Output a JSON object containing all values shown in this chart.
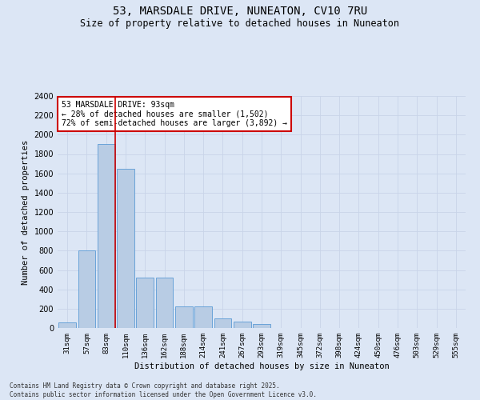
{
  "title_line1": "53, MARSDALE DRIVE, NUNEATON, CV10 7RU",
  "title_line2": "Size of property relative to detached houses in Nuneaton",
  "xlabel": "Distribution of detached houses by size in Nuneaton",
  "ylabel": "Number of detached properties",
  "categories": [
    "31sqm",
    "57sqm",
    "83sqm",
    "110sqm",
    "136sqm",
    "162sqm",
    "188sqm",
    "214sqm",
    "241sqm",
    "267sqm",
    "293sqm",
    "319sqm",
    "345sqm",
    "372sqm",
    "398sqm",
    "424sqm",
    "450sqm",
    "476sqm",
    "503sqm",
    "529sqm",
    "555sqm"
  ],
  "values": [
    60,
    800,
    1900,
    1650,
    520,
    520,
    225,
    225,
    100,
    70,
    40,
    0,
    0,
    0,
    0,
    0,
    0,
    0,
    0,
    0,
    0
  ],
  "bar_color": "#b8cce4",
  "bar_edge_color": "#5b9bd5",
  "grid_color": "#c8d4e8",
  "background_color": "#dce6f5",
  "vline_color": "#cc0000",
  "vline_x_index": 2,
  "annotation_text": "53 MARSDALE DRIVE: 93sqm\n← 28% of detached houses are smaller (1,502)\n72% of semi-detached houses are larger (3,892) →",
  "annotation_box_facecolor": "#ffffff",
  "annotation_box_edgecolor": "#cc0000",
  "ylim": [
    0,
    2400
  ],
  "yticks": [
    0,
    200,
    400,
    600,
    800,
    1000,
    1200,
    1400,
    1600,
    1800,
    2000,
    2200,
    2400
  ],
  "footer_text": "Contains HM Land Registry data © Crown copyright and database right 2025.\nContains public sector information licensed under the Open Government Licence v3.0.",
  "title_fontsize": 10,
  "subtitle_fontsize": 8.5,
  "axis_label_fontsize": 7.5,
  "ytick_fontsize": 7,
  "xtick_fontsize": 6.5,
  "annotation_fontsize": 7,
  "footer_fontsize": 5.5
}
